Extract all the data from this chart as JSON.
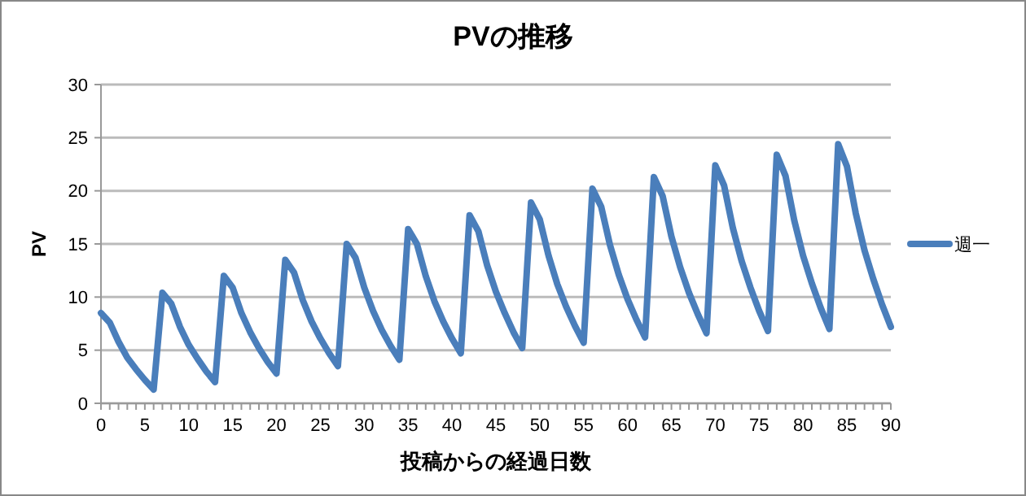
{
  "chart_data": {
    "type": "line",
    "title": "PVの推移",
    "xlabel": "投稿からの経過日数",
    "ylabel": "PV",
    "x": [
      0,
      1,
      2,
      3,
      4,
      5,
      6,
      7,
      8,
      9,
      10,
      11,
      12,
      13,
      14,
      15,
      16,
      17,
      18,
      19,
      20,
      21,
      22,
      23,
      24,
      25,
      26,
      27,
      28,
      29,
      30,
      31,
      32,
      33,
      34,
      35,
      36,
      37,
      38,
      39,
      40,
      41,
      42,
      43,
      44,
      45,
      46,
      47,
      48,
      49,
      50,
      51,
      52,
      53,
      54,
      55,
      56,
      57,
      58,
      59,
      60,
      61,
      62,
      63,
      64,
      65,
      66,
      67,
      68,
      69,
      70,
      71,
      72,
      73,
      74,
      75,
      76,
      77,
      78,
      79,
      80,
      81,
      82,
      83,
      84,
      85,
      86,
      87,
      88,
      89,
      90
    ],
    "series": [
      {
        "name": "週一",
        "color": "#4a7ebb",
        "values": [
          8.5,
          7.6,
          5.8,
          4.3,
          3.2,
          2.2,
          1.3,
          10.4,
          9.4,
          7.2,
          5.5,
          4.2,
          3.0,
          2.0,
          12.0,
          10.9,
          8.5,
          6.7,
          5.2,
          3.9,
          2.8,
          13.5,
          12.3,
          9.7,
          7.7,
          6.1,
          4.7,
          3.5,
          15.0,
          13.7,
          10.9,
          8.7,
          6.9,
          5.4,
          4.1,
          16.4,
          15.0,
          12.0,
          9.6,
          7.7,
          6.1,
          4.7,
          17.7,
          16.2,
          13.0,
          10.5,
          8.5,
          6.7,
          5.2,
          18.9,
          17.3,
          13.9,
          11.2,
          9.1,
          7.3,
          5.7,
          20.2,
          18.5,
          14.9,
          12.1,
          9.8,
          7.9,
          6.2,
          21.3,
          19.5,
          15.7,
          12.8,
          10.4,
          8.4,
          6.6,
          22.4,
          20.5,
          16.5,
          13.4,
          10.9,
          8.7,
          6.8,
          23.4,
          21.4,
          17.2,
          13.9,
          11.3,
          9.0,
          7.0,
          24.4,
          22.3,
          17.9,
          14.4,
          11.7,
          9.3,
          7.2
        ]
      }
    ],
    "xlim": [
      0,
      90
    ],
    "xticks": [
      0,
      5,
      10,
      15,
      20,
      25,
      30,
      35,
      40,
      45,
      50,
      55,
      60,
      65,
      70,
      75,
      80,
      85,
      90
    ],
    "ylim": [
      0,
      30
    ],
    "yticks": [
      0,
      5,
      10,
      15,
      20,
      25,
      30
    ],
    "grid": "y",
    "legend": "right",
    "marker": "none",
    "line_style": "solid"
  }
}
